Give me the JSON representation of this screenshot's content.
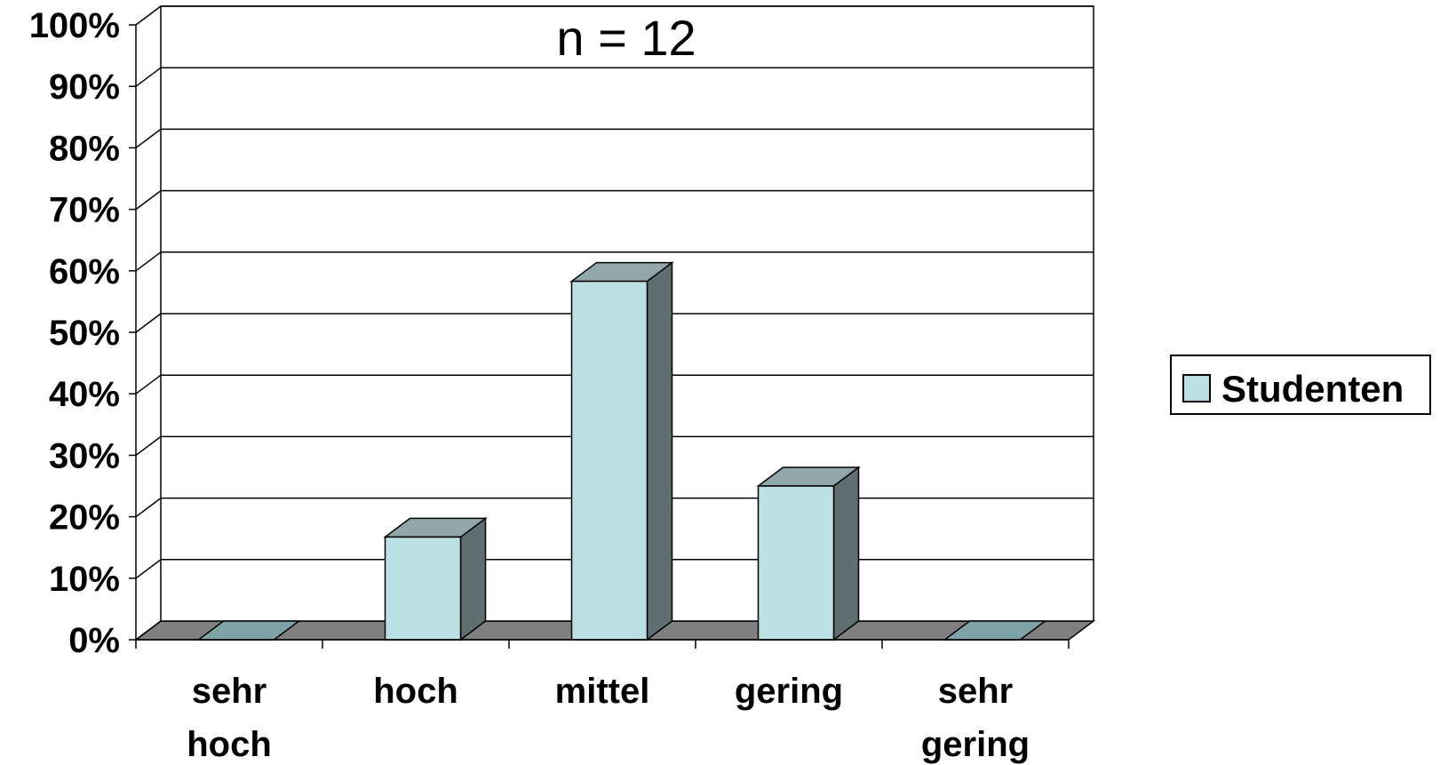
{
  "chart_data": {
    "type": "bar",
    "title": "",
    "annotation": "n = 12",
    "xlabel": "",
    "ylabel": "",
    "categories": [
      [
        "sehr",
        "hoch"
      ],
      [
        "hoch"
      ],
      [
        "mittel"
      ],
      [
        "gering"
      ],
      [
        "sehr",
        "gering"
      ]
    ],
    "series": [
      {
        "name": "Studenten",
        "values": [
          0,
          16.7,
          58.3,
          25.0,
          0
        ],
        "color": "#bbe0e3"
      }
    ],
    "ylim": [
      0,
      100
    ],
    "yticks": [
      "0%",
      "10%",
      "20%",
      "30%",
      "40%",
      "50%",
      "60%",
      "70%",
      "80%",
      "90%",
      "100%"
    ],
    "grid": true,
    "legend_position": "right",
    "style": "3d-column"
  }
}
